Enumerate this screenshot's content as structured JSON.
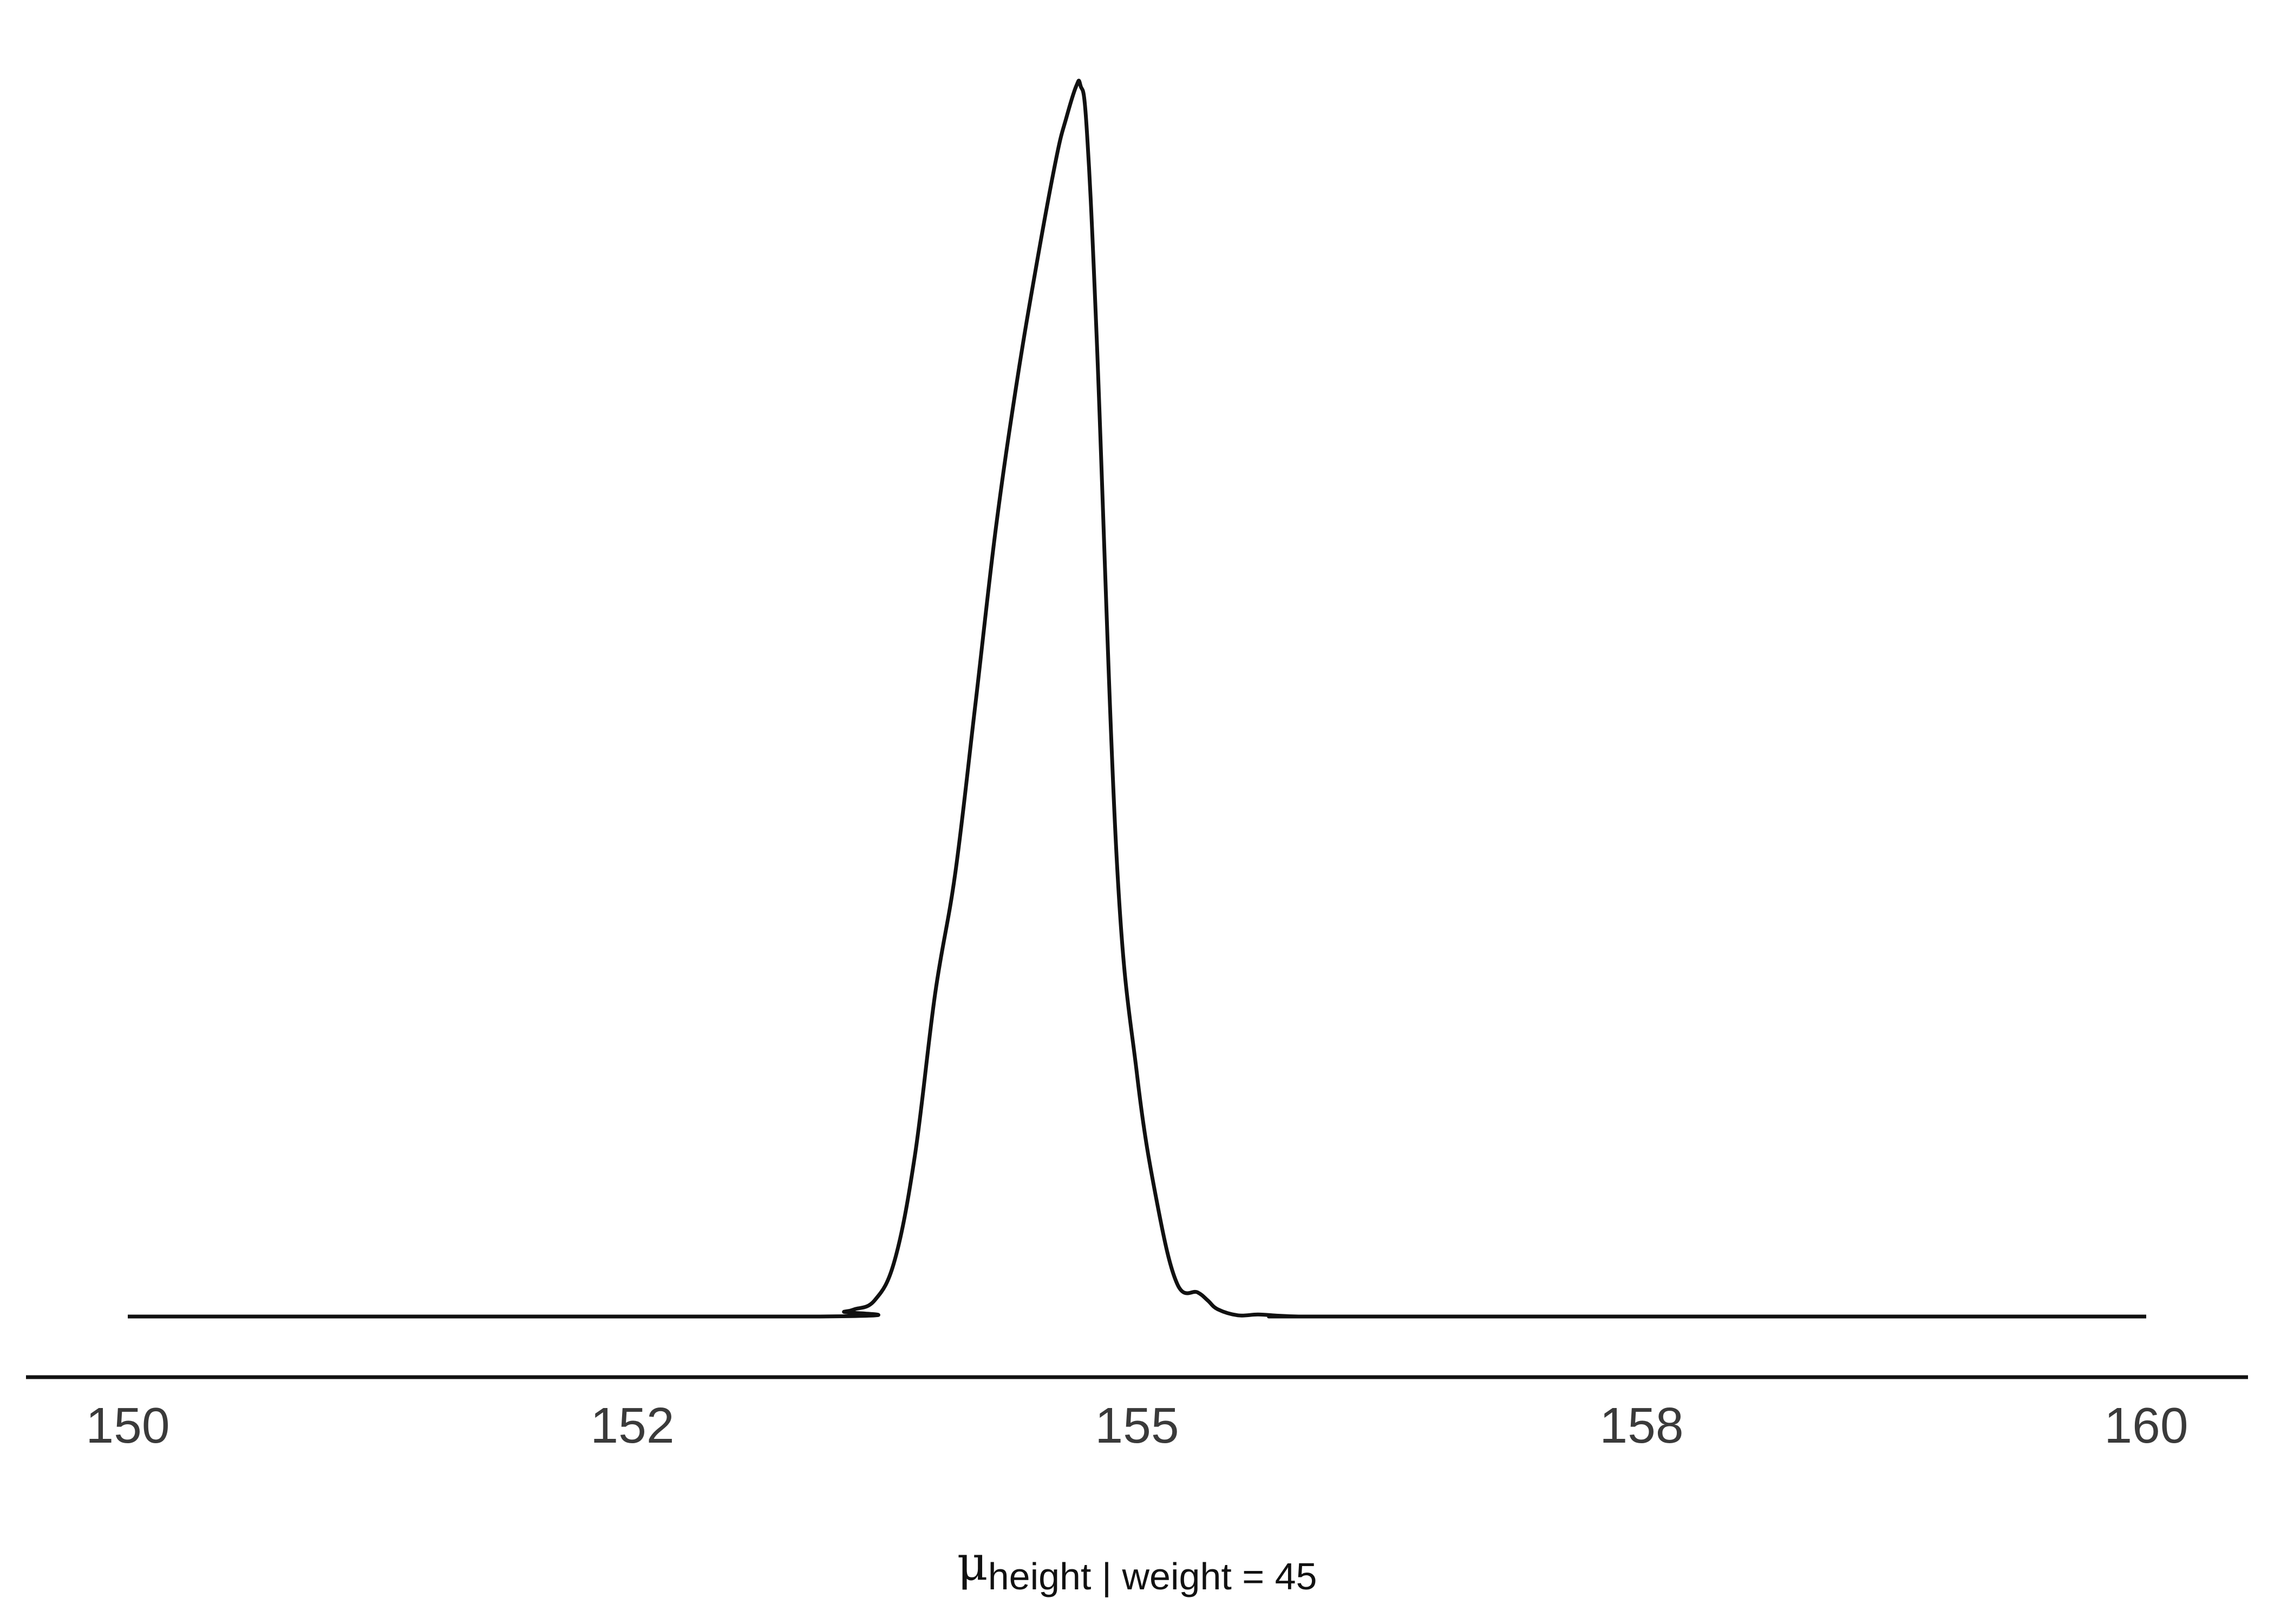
{
  "chart_data": {
    "type": "area",
    "title": "",
    "xlabel": {
      "symbol": "μ",
      "subscript": "height | weight = 45"
    },
    "ylabel": "",
    "xlim": [
      150,
      160
    ],
    "x_ticks": [
      {
        "value": 150,
        "label": "150"
      },
      {
        "value": 152.5,
        "label": "152"
      },
      {
        "value": 155,
        "label": "155"
      },
      {
        "value": 157.5,
        "label": "158"
      },
      {
        "value": 160,
        "label": "160"
      }
    ],
    "grid": false,
    "legend": "none",
    "line_color": "#111111",
    "series": [
      {
        "x": [
          150.0,
          153.4,
          153.55,
          153.6,
          153.7,
          153.8,
          153.9,
          154.0,
          154.1,
          154.2,
          154.3,
          154.4,
          154.5,
          154.6,
          154.65,
          154.7,
          154.72,
          154.75,
          154.8,
          154.9,
          155.0,
          155.1,
          155.2,
          155.3,
          155.35,
          155.4,
          155.5,
          155.6,
          155.7,
          155.8,
          155.9,
          156.0,
          160.0
        ],
        "y": [
          0.0,
          0.0,
          0.012,
          0.018,
          0.04,
          0.14,
          0.4,
          0.8,
          1.1,
          1.52,
          1.95,
          2.3,
          2.6,
          2.87,
          2.97,
          3.05,
          3.05,
          2.95,
          2.43,
          1.13,
          0.6,
          0.28,
          0.08,
          0.06,
          0.04,
          0.018,
          0.003,
          0.005,
          0.002,
          0.0,
          0.0,
          0.0,
          0.0
        ]
      }
    ]
  }
}
